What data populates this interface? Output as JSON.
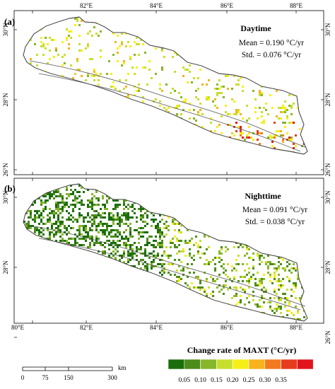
{
  "panels": [
    {
      "label": "(a)",
      "title": "Daytime",
      "mean": "Mean = 0.190 °C/yr",
      "std": "Std. = 0.076 °C/yr",
      "lon_ticks": [
        "80°E",
        "82°E",
        "84°E",
        "86°E",
        "88°E"
      ],
      "lat_ticks": [
        "30°N",
        "28°N",
        "26°N"
      ]
    },
    {
      "label": "(b)",
      "title": "Nighttime",
      "mean": "Mean = 0.091 °C/yr",
      "std": "Std. = 0.038 °C/yr",
      "lon_ticks": [
        "80°E",
        "82°E",
        "84°E",
        "86°E",
        "88°E"
      ],
      "lat_ticks": [
        "30°N",
        "28°N",
        "26°N"
      ]
    }
  ],
  "legend": {
    "title": "Change rate of MAXT (°C/yr)",
    "colors": [
      "#1a6e0a",
      "#4c8c1a",
      "#86b62a",
      "#c8de2e",
      "#f6ef18",
      "#f7b21c",
      "#f27a1e",
      "#e63d1e",
      "#e0151b"
    ],
    "tick_labels": [
      "0.05",
      "0.10",
      "0.15",
      "0.20",
      "0.25",
      "0.30",
      "0.35"
    ]
  },
  "scale_bar": {
    "labels": [
      "0",
      "75",
      "150",
      "300"
    ],
    "unit": "km"
  }
}
